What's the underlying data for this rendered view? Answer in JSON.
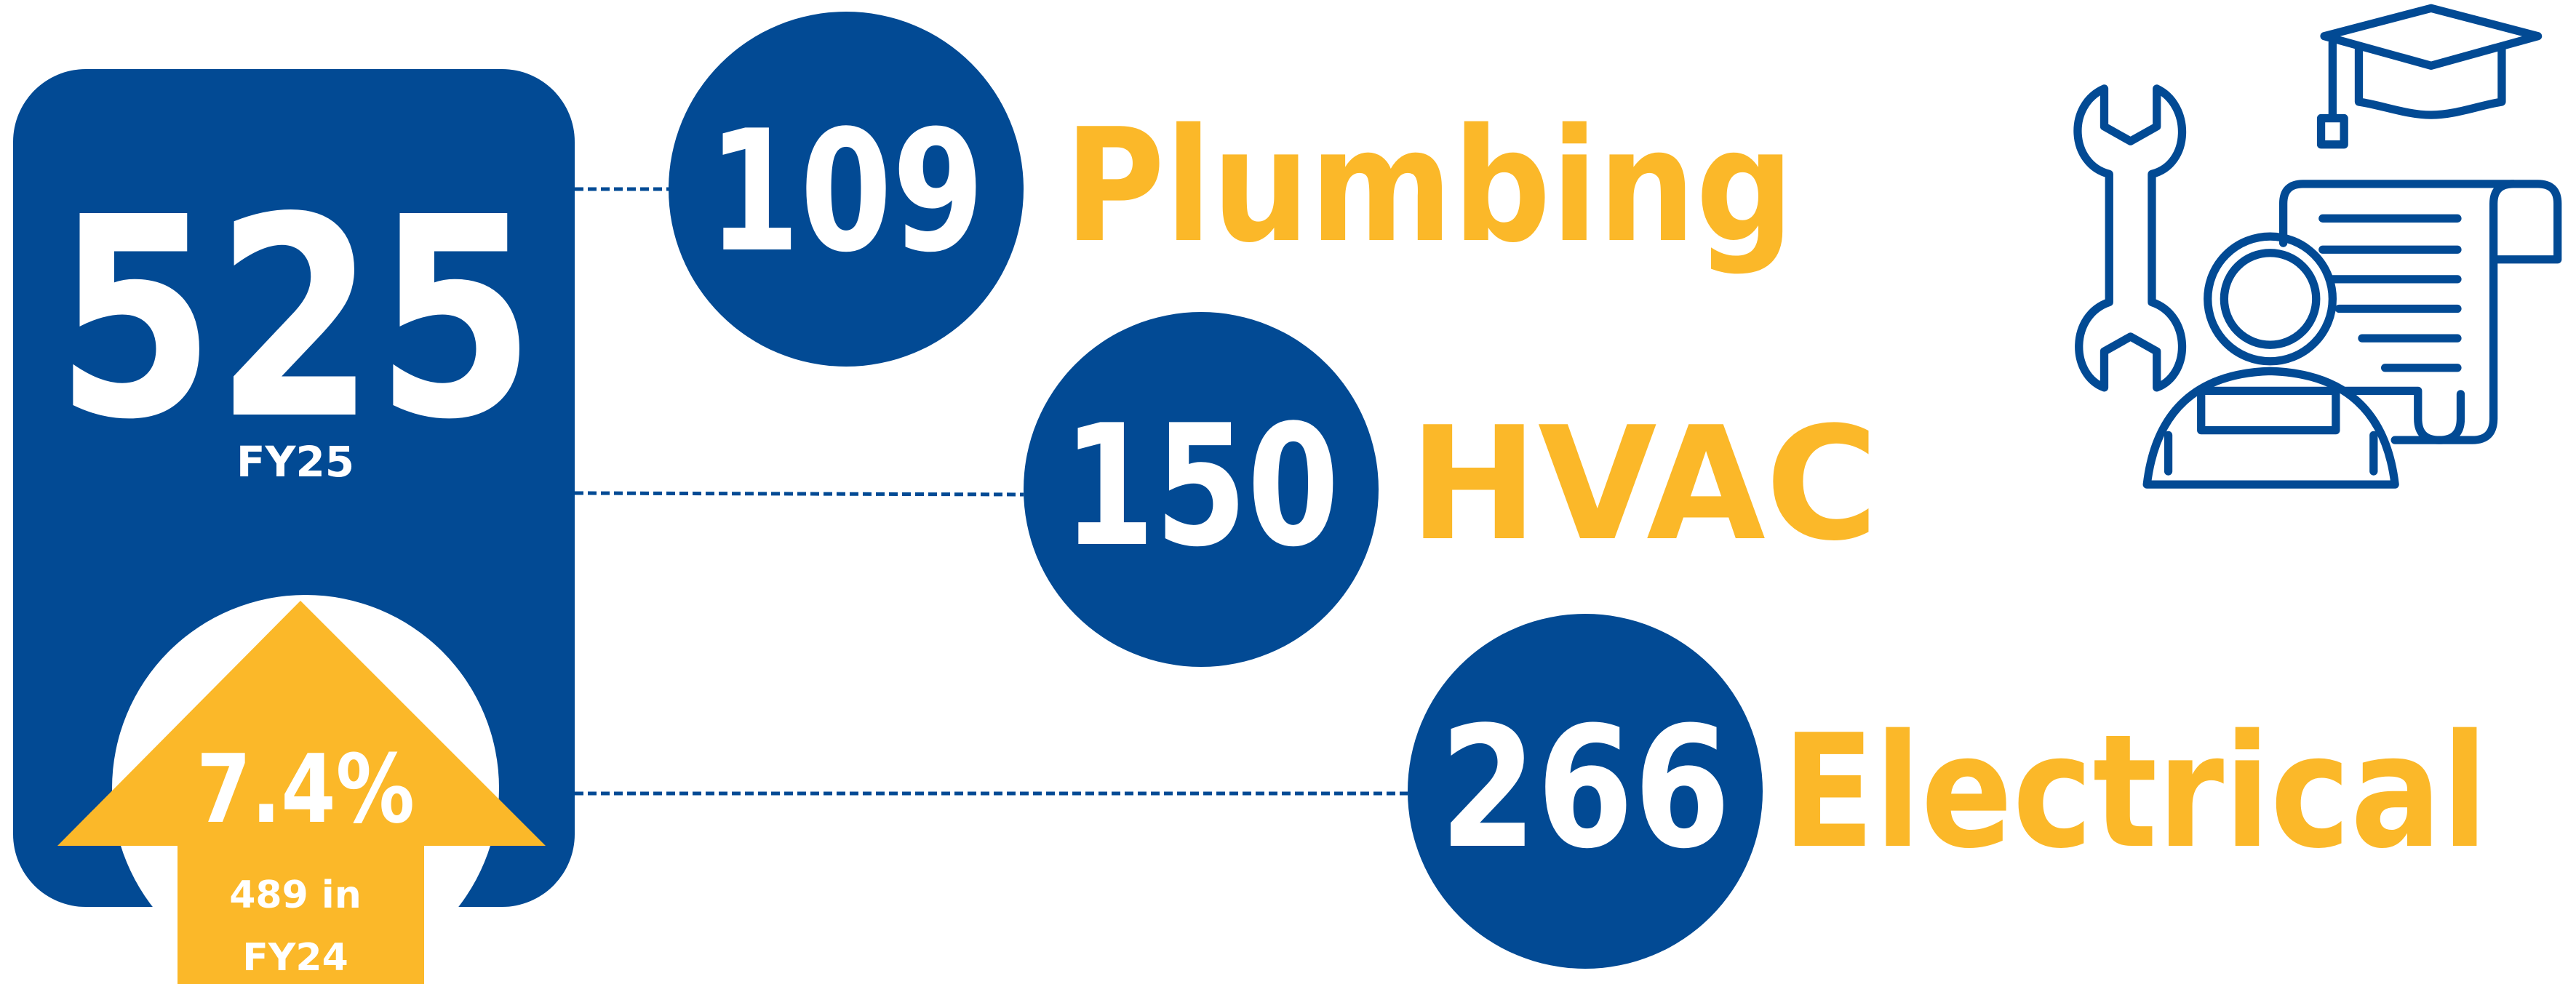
{
  "total": {
    "value": 525,
    "label": "FY25"
  },
  "change": {
    "percent": "7.4%",
    "previous_lines": [
      "489 in",
      "FY24"
    ]
  },
  "trades": [
    {
      "count": 109,
      "name": "Plumbing"
    },
    {
      "count": 150,
      "name": "HVAC"
    },
    {
      "count": 266,
      "name": "Electrical"
    }
  ]
}
